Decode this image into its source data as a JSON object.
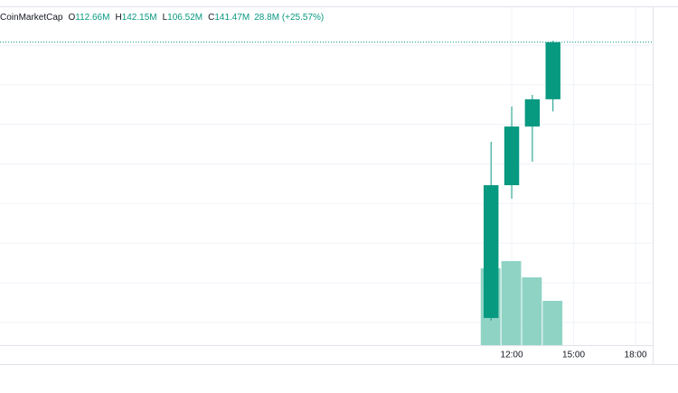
{
  "chart_data": {
    "type": "candlestick",
    "source": "CoinMarketCap",
    "header": [
      {
        "label": "O",
        "text": "112.66M"
      },
      {
        "label": "H",
        "text": "142.15M"
      },
      {
        "label": "L",
        "text": "106.52M"
      },
      {
        "label": "C",
        "text": "141.47M"
      }
    ],
    "change": "28.8M (+25.57%)",
    "x": [
      11,
      12,
      13,
      14
    ],
    "open": [
      2.3,
      69.3,
      98.9,
      112.66
    ],
    "high": [
      91.2,
      109,
      114.9,
      142.15
    ],
    "low": [
      1,
      62.5,
      81.2,
      106.52
    ],
    "close": [
      69.3,
      98.9,
      112.66,
      141.47
    ],
    "volume": [
      85,
      93,
      75,
      49
    ],
    "color": "#089981",
    "volume_color": "#8fd3c4",
    "xlim": [
      -12.79,
      18.83
    ],
    "xticks": [
      {
        "value": 12,
        "label": "12:00"
      },
      {
        "value": 15,
        "label": "15:00"
      },
      {
        "value": 18,
        "label": "18:00"
      }
    ],
    "ylim": [
      -11.4,
      159.1
    ],
    "yticks": [
      0,
      20,
      40,
      60,
      80,
      100,
      120,
      140
    ],
    "grid": true
  }
}
